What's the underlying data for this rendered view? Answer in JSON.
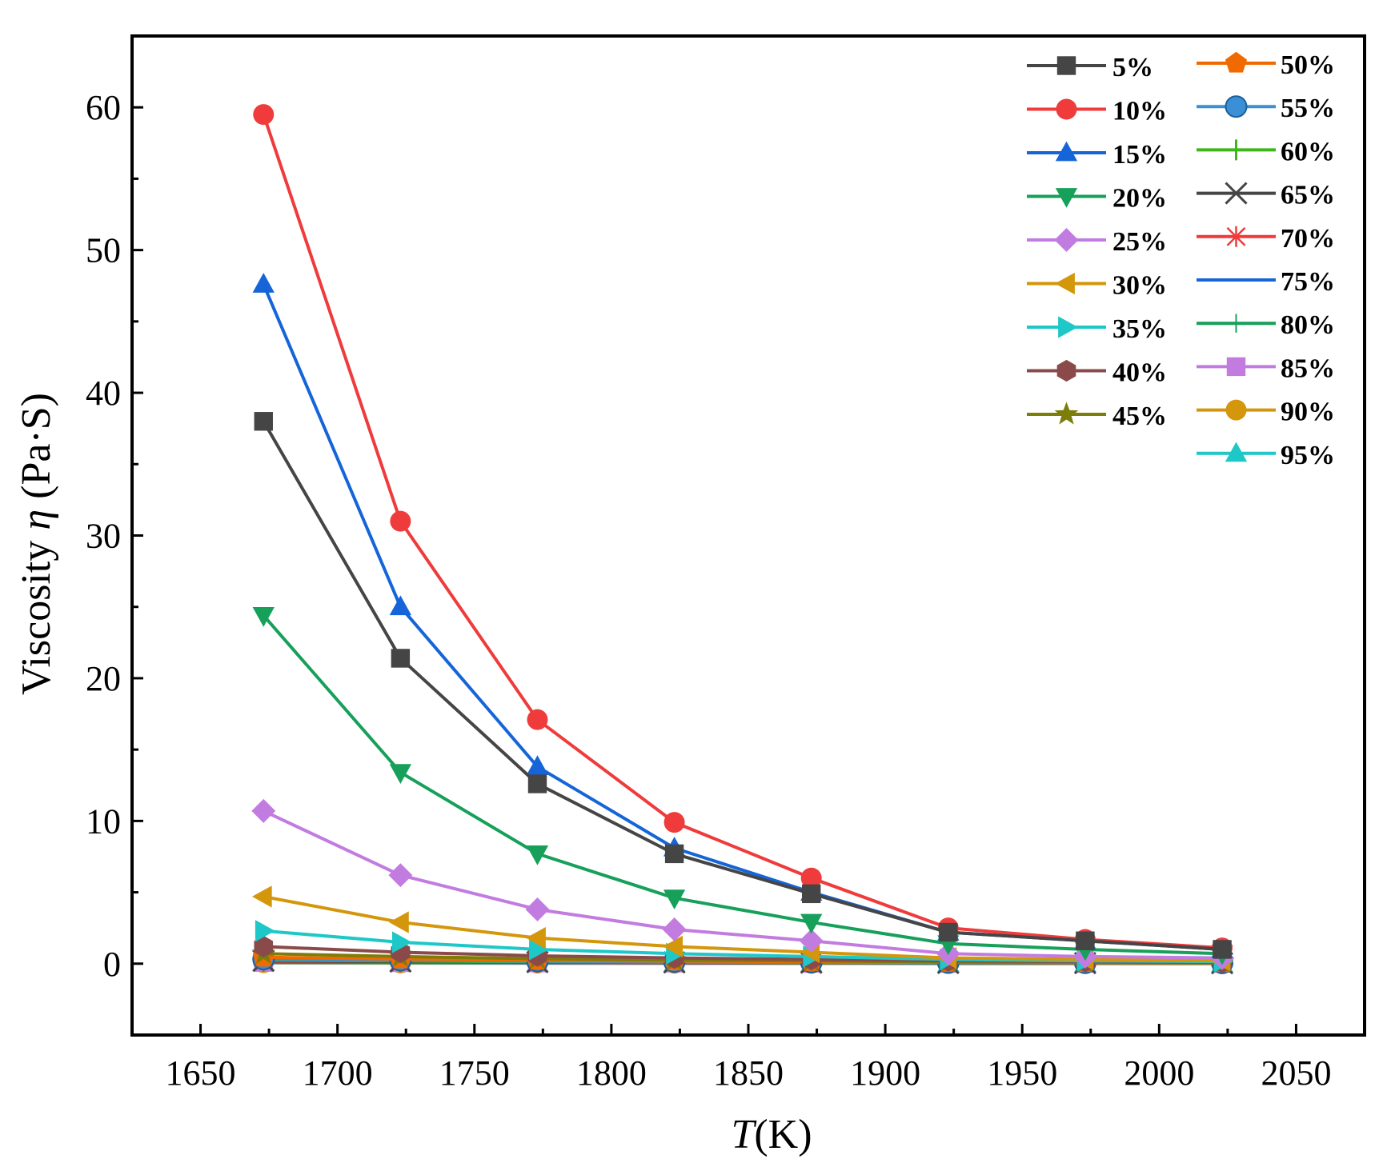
{
  "chart_data": {
    "type": "line",
    "title": "",
    "xlabel": "T(K)",
    "xlabel_italic": "T",
    "xlabel_rest": "(K)",
    "ylabel": "Viscosity η (Pa·S)",
    "ylabel_pre": "Viscosity ",
    "ylabel_sym": "η",
    "ylabel_post": " (Pa·S)",
    "xlim": [
      1625,
      2075
    ],
    "ylim": [
      -5,
      65
    ],
    "xticks": [
      1650,
      1700,
      1750,
      1800,
      1850,
      1900,
      1950,
      2000,
      2050
    ],
    "yticks": [
      0,
      10,
      20,
      30,
      40,
      50,
      60
    ],
    "x": [
      1673,
      1723,
      1773,
      1823,
      1873,
      1923,
      1973,
      2023
    ],
    "legend_position": "top-right",
    "series": [
      {
        "name": "5%",
        "color": "#454545",
        "marker": "square",
        "values": [
          38.0,
          21.4,
          12.6,
          7.7,
          4.9,
          2.2,
          1.6,
          1.0
        ]
      },
      {
        "name": "10%",
        "color": "#ef3b3b",
        "marker": "circle",
        "values": [
          59.5,
          31.0,
          17.1,
          9.9,
          6.0,
          2.5,
          1.7,
          1.1
        ]
      },
      {
        "name": "15%",
        "color": "#1565d8",
        "marker": "triangle-up",
        "values": [
          47.6,
          25.0,
          13.8,
          8.1,
          5.0,
          2.2,
          1.6,
          1.0
        ]
      },
      {
        "name": "20%",
        "color": "#16a05a",
        "marker": "triangle-down",
        "values": [
          24.4,
          13.4,
          7.7,
          4.6,
          2.9,
          1.4,
          1.0,
          0.7
        ]
      },
      {
        "name": "25%",
        "color": "#c27ce0",
        "marker": "diamond",
        "values": [
          10.7,
          6.2,
          3.8,
          2.4,
          1.6,
          0.7,
          0.5,
          0.4
        ]
      },
      {
        "name": "30%",
        "color": "#d4960a",
        "marker": "triangle-left",
        "values": [
          4.7,
          2.9,
          1.8,
          1.2,
          0.8,
          0.4,
          0.3,
          0.2
        ]
      },
      {
        "name": "35%",
        "color": "#1ec8c8",
        "marker": "triangle-right",
        "values": [
          2.3,
          1.5,
          1.0,
          0.7,
          0.5,
          0.3,
          0.2,
          0.15
        ]
      },
      {
        "name": "40%",
        "color": "#8b4a4a",
        "marker": "hexagon",
        "values": [
          1.2,
          0.8,
          0.55,
          0.4,
          0.3,
          0.2,
          0.15,
          0.1
        ]
      },
      {
        "name": "45%",
        "color": "#7d7d0a",
        "marker": "star",
        "values": [
          0.7,
          0.5,
          0.35,
          0.25,
          0.2,
          0.12,
          0.1,
          0.08
        ]
      },
      {
        "name": "50%",
        "color": "#f06a00",
        "marker": "pentagon",
        "values": [
          0.45,
          0.32,
          0.24,
          0.18,
          0.14,
          0.09,
          0.07,
          0.06
        ]
      },
      {
        "name": "55%",
        "color": "#3b8fd6",
        "marker": "sphere",
        "values": [
          0.32,
          0.24,
          0.18,
          0.14,
          0.1,
          0.07,
          0.06,
          0.05
        ]
      },
      {
        "name": "60%",
        "color": "#3fb618",
        "marker": "plus",
        "values": [
          0.25,
          0.19,
          0.14,
          0.11,
          0.08,
          0.06,
          0.05,
          0.04
        ]
      },
      {
        "name": "65%",
        "color": "#454545",
        "marker": "x",
        "values": [
          0.2,
          0.15,
          0.11,
          0.09,
          0.07,
          0.05,
          0.04,
          0.03
        ]
      },
      {
        "name": "70%",
        "color": "#ef3b3b",
        "marker": "asterisk",
        "values": [
          0.16,
          0.12,
          0.09,
          0.07,
          0.05,
          0.04,
          0.03,
          0.03
        ]
      },
      {
        "name": "75%",
        "color": "#1565d8",
        "marker": "none",
        "values": [
          0.13,
          0.1,
          0.08,
          0.06,
          0.05,
          0.03,
          0.03,
          0.02
        ]
      },
      {
        "name": "80%",
        "color": "#16a05a",
        "marker": "thin-plus",
        "values": [
          0.11,
          0.08,
          0.06,
          0.05,
          0.04,
          0.03,
          0.02,
          0.02
        ]
      },
      {
        "name": "85%",
        "color": "#c27ce0",
        "marker": "square",
        "values": [
          0.09,
          0.07,
          0.05,
          0.04,
          0.03,
          0.02,
          0.02,
          0.02
        ]
      },
      {
        "name": "90%",
        "color": "#d4960a",
        "marker": "circle",
        "values": [
          0.07,
          0.05,
          0.04,
          0.03,
          0.03,
          0.02,
          0.02,
          0.01
        ]
      },
      {
        "name": "95%",
        "color": "#1ec8c8",
        "marker": "triangle-up",
        "values": [
          0.05,
          0.04,
          0.03,
          0.02,
          0.02,
          0.01,
          0.01,
          0.01
        ]
      }
    ]
  }
}
